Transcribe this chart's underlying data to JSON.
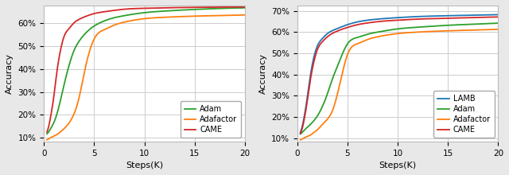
{
  "left": {
    "xlabel": "Steps(K)",
    "ylabel": "Accuracy",
    "xlim": [
      0,
      20
    ],
    "ylim": [
      0.085,
      0.675
    ],
    "yticks": [
      0.1,
      0.2,
      0.3,
      0.4,
      0.5,
      0.6
    ],
    "xticks": [
      0,
      5,
      10,
      15,
      20
    ],
    "series": {
      "Adam": {
        "color": "#2ca02c",
        "x": [
          0.3,
          0.5,
          0.7,
          1.0,
          1.3,
          1.6,
          2.0,
          2.5,
          3.0,
          3.5,
          4.0,
          5.0,
          6.0,
          7.0,
          8.0,
          10.0,
          12.0,
          15.0,
          18.0,
          20.0
        ],
        "y": [
          0.118,
          0.128,
          0.143,
          0.168,
          0.205,
          0.255,
          0.33,
          0.415,
          0.48,
          0.52,
          0.548,
          0.586,
          0.608,
          0.622,
          0.631,
          0.644,
          0.651,
          0.658,
          0.663,
          0.665
        ]
      },
      "Adafactor": {
        "color": "#ff7f0e",
        "x": [
          0.3,
          0.5,
          0.7,
          1.0,
          1.3,
          1.6,
          2.0,
          2.5,
          3.0,
          3.5,
          4.0,
          5.0,
          6.0,
          7.0,
          8.0,
          10.0,
          12.0,
          15.0,
          18.0,
          20.0
        ],
        "y": [
          0.092,
          0.097,
          0.102,
          0.108,
          0.115,
          0.125,
          0.14,
          0.165,
          0.205,
          0.275,
          0.38,
          0.53,
          0.57,
          0.59,
          0.603,
          0.618,
          0.624,
          0.629,
          0.632,
          0.634
        ]
      },
      "CAME": {
        "color": "#d62728",
        "x": [
          0.3,
          0.5,
          0.7,
          1.0,
          1.3,
          1.6,
          2.0,
          2.5,
          3.0,
          3.5,
          4.0,
          5.0,
          6.0,
          7.0,
          8.0,
          10.0,
          12.0,
          15.0,
          18.0,
          20.0
        ],
        "y": [
          0.126,
          0.155,
          0.2,
          0.285,
          0.39,
          0.47,
          0.54,
          0.575,
          0.6,
          0.615,
          0.625,
          0.64,
          0.648,
          0.654,
          0.659,
          0.663,
          0.665,
          0.667,
          0.668,
          0.669
        ]
      }
    },
    "legend_loc": "lower right"
  },
  "right": {
    "xlabel": "Steps(K)",
    "ylabel": "Accuracy",
    "xlim": [
      0,
      20
    ],
    "ylim": [
      0.085,
      0.725
    ],
    "yticks": [
      0.1,
      0.2,
      0.3,
      0.4,
      0.5,
      0.6,
      0.7
    ],
    "xticks": [
      0,
      5,
      10,
      15,
      20
    ],
    "series": {
      "LAMB": {
        "color": "#1f77b4",
        "x": [
          0.3,
          0.5,
          0.7,
          1.0,
          1.3,
          1.6,
          2.0,
          2.5,
          3.0,
          3.5,
          4.0,
          5.0,
          6.0,
          7.0,
          8.0,
          10.0,
          12.0,
          15.0,
          18.0,
          20.0
        ],
        "y": [
          0.128,
          0.158,
          0.205,
          0.295,
          0.395,
          0.472,
          0.535,
          0.57,
          0.593,
          0.607,
          0.617,
          0.635,
          0.648,
          0.656,
          0.661,
          0.668,
          0.673,
          0.677,
          0.68,
          0.682
        ]
      },
      "Adam": {
        "color": "#2ca02c",
        "x": [
          0.3,
          0.5,
          0.7,
          1.0,
          1.3,
          1.6,
          2.0,
          2.5,
          3.0,
          3.5,
          4.0,
          5.0,
          6.0,
          7.0,
          8.0,
          10.0,
          12.0,
          15.0,
          18.0,
          20.0
        ],
        "y": [
          0.12,
          0.128,
          0.138,
          0.152,
          0.165,
          0.18,
          0.205,
          0.25,
          0.31,
          0.38,
          0.44,
          0.545,
          0.575,
          0.59,
          0.6,
          0.615,
          0.623,
          0.632,
          0.638,
          0.642
        ]
      },
      "Adafactor": {
        "color": "#ff7f0e",
        "x": [
          0.3,
          0.5,
          0.7,
          1.0,
          1.3,
          1.6,
          2.0,
          2.5,
          3.0,
          3.5,
          4.0,
          5.0,
          6.0,
          7.0,
          8.0,
          10.0,
          12.0,
          15.0,
          18.0,
          20.0
        ],
        "y": [
          0.092,
          0.097,
          0.102,
          0.108,
          0.115,
          0.125,
          0.14,
          0.165,
          0.19,
          0.23,
          0.31,
          0.495,
          0.545,
          0.565,
          0.578,
          0.593,
          0.6,
          0.606,
          0.61,
          0.613
        ]
      },
      "CAME": {
        "color": "#d62728",
        "x": [
          0.3,
          0.5,
          0.7,
          1.0,
          1.3,
          1.6,
          2.0,
          2.5,
          3.0,
          3.5,
          4.0,
          5.0,
          6.0,
          7.0,
          8.0,
          10.0,
          12.0,
          15.0,
          18.0,
          20.0
        ],
        "y": [
          0.122,
          0.148,
          0.192,
          0.278,
          0.375,
          0.45,
          0.518,
          0.555,
          0.578,
          0.594,
          0.605,
          0.622,
          0.635,
          0.643,
          0.649,
          0.656,
          0.661,
          0.665,
          0.669,
          0.671
        ]
      }
    },
    "legend_loc": "lower right"
  },
  "fig_bg": "#e8e8e8",
  "axes_bg": "#ffffff",
  "grid_color": "#cccccc",
  "figsize": [
    6.4,
    2.2
  ],
  "dpi": 100
}
